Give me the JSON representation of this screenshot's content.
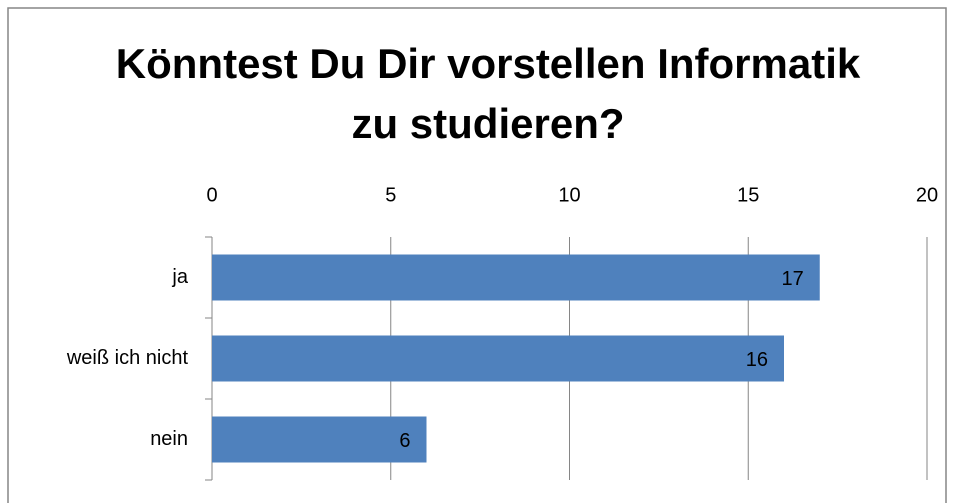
{
  "chart_data": {
    "type": "barh",
    "title": "Könntest Du Dir vorstellen Informatik zu studieren?",
    "categories": [
      "ja",
      "weiß ich nicht",
      "nein"
    ],
    "values": [
      17,
      16,
      6
    ],
    "color": "#4f81bd",
    "xlim": [
      0,
      20
    ],
    "xticks": [
      0,
      5,
      10,
      15,
      20
    ],
    "grid": true,
    "data_labels": true
  }
}
